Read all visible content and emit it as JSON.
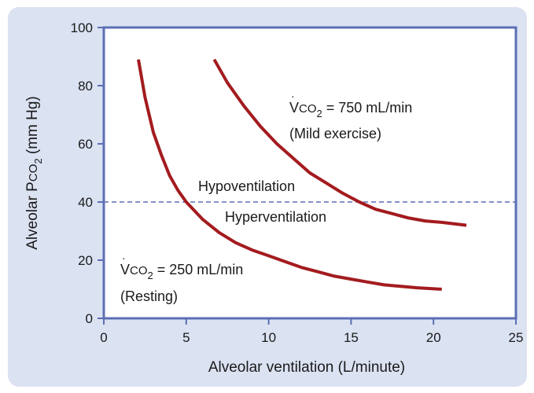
{
  "colors": {
    "panel_background": "#dbe2f2",
    "plot_background": "#ffffff",
    "plot_border": "#5b6fb4",
    "curve": "#a31b1f",
    "reference_line": "#5b6fb4"
  },
  "chart_data": {
    "type": "line",
    "title": "",
    "xlabel": "Alveolar ventilation (L/minute)",
    "ylabel": {
      "prefix": "Alveolar P",
      "species": "CO",
      "subscript": "2",
      "suffix": " (mm Hg)"
    },
    "xlim": [
      0,
      25
    ],
    "ylim": [
      0,
      100
    ],
    "x_ticks": [
      0,
      5,
      10,
      15,
      20,
      25
    ],
    "y_ticks": [
      0,
      20,
      40,
      60,
      80,
      100
    ],
    "grid": false,
    "legend": "none",
    "series": [
      {
        "id": "resting",
        "x": [
          2.1,
          2.5,
          3,
          3.5,
          4,
          4.5,
          5,
          6,
          7,
          8,
          9,
          10,
          11,
          12,
          13,
          14,
          15,
          16,
          17,
          18,
          19,
          20.5
        ],
        "y": [
          89,
          76,
          64,
          56,
          49,
          44,
          40,
          34,
          29.5,
          26,
          23.5,
          21.5,
          19.5,
          17.5,
          16,
          14.5,
          13.5,
          12.5,
          11.5,
          11,
          10.5,
          10
        ]
      },
      {
        "id": "mild-exercise",
        "x": [
          6.7,
          7.5,
          8.5,
          9.5,
          10.5,
          11.5,
          12.5,
          13.5,
          14.5,
          15.5,
          16.5,
          17.5,
          18.5,
          19.5,
          20.5,
          22
        ],
        "y": [
          89,
          81,
          73,
          66,
          60,
          55,
          50,
          46.5,
          43,
          40,
          37.5,
          36,
          34.5,
          33.5,
          33,
          32
        ]
      }
    ],
    "reference_line": {
      "y": 40,
      "style": "dashed",
      "label_above": "Hypoventilation",
      "label_below": "Hyperventilation"
    },
    "annotations": [
      {
        "id": "mild-exercise",
        "species": "V",
        "subscript_species": "CO",
        "subscript": "2",
        "value": " = 750 mL/min",
        "note": "(Mild exercise)"
      },
      {
        "id": "resting",
        "species": "V",
        "subscript_species": "CO",
        "subscript": "2",
        "value": " = 250 mL/min",
        "note": "(Resting)"
      }
    ]
  }
}
